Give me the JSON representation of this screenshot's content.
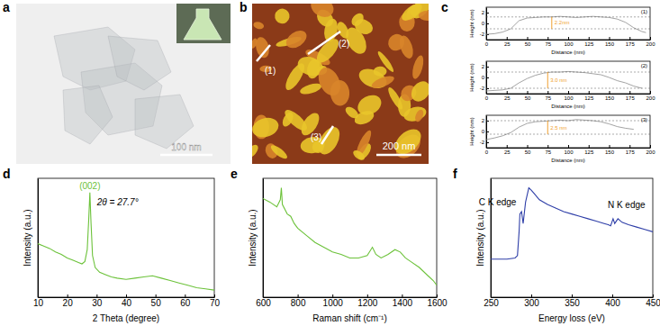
{
  "panels": [
    {
      "label": "a",
      "scale_bar": "100 nm"
    },
    {
      "label": "b",
      "scale_bar": "200 nm",
      "lines": [
        "(1)",
        "(2)",
        "(3)"
      ]
    }
  ],
  "chart_data": [
    {
      "type": "line",
      "panel": "c",
      "label": "(1)",
      "x_label": "Distance (nm)",
      "y_label": "Height (nm)",
      "color": "#8c8c8c",
      "xlim": [
        0,
        200
      ],
      "xticks": [
        0,
        25,
        50,
        75,
        100,
        125,
        150,
        175,
        200
      ],
      "ylim": [
        -3,
        3
      ],
      "yticks": [
        -2,
        0,
        2
      ],
      "x": [
        0,
        10,
        20,
        30,
        40,
        50,
        60,
        70,
        80,
        90,
        100,
        110,
        120,
        130,
        140,
        150,
        160,
        170,
        180,
        190,
        195
      ],
      "values": [
        -2.0,
        -1.9,
        -1.6,
        -1.0,
        0.5,
        1.0,
        1.1,
        1.2,
        1.2,
        1.3,
        1.2,
        1.1,
        1.2,
        1.3,
        1.2,
        1.1,
        0.8,
        0.2,
        -0.8,
        -1.5,
        -1.7
      ],
      "step": {
        "text": "2.2nm",
        "x": 80,
        "y1": -1.0,
        "y2": 1.2
      }
    },
    {
      "type": "line",
      "label": "(2)",
      "x_label": "Distance (nm)",
      "y_label": "Height (nm)",
      "color": "#8c8c8c",
      "xlim": [
        0,
        200
      ],
      "xticks": [
        0,
        25,
        50,
        75,
        100,
        125,
        150,
        175,
        200
      ],
      "ylim": [
        -3,
        3
      ],
      "yticks": [
        -2,
        0,
        2
      ],
      "x": [
        0,
        10,
        20,
        30,
        40,
        50,
        60,
        70,
        80,
        90,
        100,
        110,
        120,
        130,
        140,
        150,
        160,
        170,
        180,
        190
      ],
      "values": [
        -2.5,
        -2.4,
        -2.3,
        -2.0,
        -1.0,
        -0.2,
        0.4,
        0.8,
        1.0,
        1.0,
        1.1,
        1.0,
        0.9,
        0.7,
        0.5,
        0.0,
        -0.6,
        -1.0,
        -1.6,
        -2.0
      ],
      "step": {
        "text": "3.0 nm",
        "x": 75,
        "y1": -2.0,
        "y2": 1.0
      }
    },
    {
      "type": "line",
      "label": "(3)",
      "x_label": "Distance (nm)",
      "y_label": "Height (nm)",
      "color": "#8c8c8c",
      "xlim": [
        0,
        200
      ],
      "xticks": [
        0,
        25,
        50,
        75,
        100,
        125,
        150,
        175,
        200
      ],
      "ylim": [
        -3,
        3
      ],
      "yticks": [
        -2,
        0,
        2
      ],
      "x": [
        0,
        10,
        20,
        30,
        40,
        50,
        60,
        70,
        80,
        90,
        100,
        110,
        120,
        130,
        140,
        150,
        160,
        170,
        180
      ],
      "values": [
        -1.5,
        -1.2,
        -0.8,
        -0.2,
        0.8,
        1.5,
        1.8,
        1.9,
        2.0,
        2.1,
        2.0,
        2.2,
        2.1,
        2.0,
        1.8,
        1.4,
        0.9,
        0.6,
        0.4
      ],
      "step": {
        "text": "2.5 nm",
        "x": 75,
        "y1": -0.5,
        "y2": 2.0
      }
    },
    {
      "type": "line",
      "panel": "d",
      "x_label": "2 Theta (degree)",
      "y_label": "Intensity (a.u.)",
      "color": "#6cc23a",
      "xlim": [
        10,
        70
      ],
      "xticks": [
        10,
        20,
        30,
        40,
        50,
        60,
        70
      ],
      "ylim": [
        0,
        1
      ],
      "tick_labels": "x",
      "x": [
        10,
        12,
        14,
        16,
        18,
        20,
        22,
        24,
        25,
        26,
        26.8,
        27.3,
        27.7,
        28.1,
        28.6,
        29.5,
        31,
        33,
        35,
        37,
        40,
        43,
        46,
        49,
        52,
        55,
        58,
        61,
        64,
        67,
        70
      ],
      "values": [
        0.45,
        0.43,
        0.41,
        0.38,
        0.36,
        0.33,
        0.31,
        0.29,
        0.28,
        0.3,
        0.4,
        0.65,
        0.88,
        0.62,
        0.35,
        0.25,
        0.21,
        0.19,
        0.17,
        0.16,
        0.15,
        0.16,
        0.17,
        0.18,
        0.16,
        0.14,
        0.12,
        0.1,
        0.08,
        0.07,
        0.06
      ],
      "annotations": [
        {
          "text": "(002)",
          "x": 27.7
        },
        {
          "text": "2θ = 27.7°",
          "x": 27.7
        }
      ]
    },
    {
      "type": "line",
      "panel": "e",
      "x_label": "Raman shift (cm⁻¹)",
      "y_label": "Intensity (a.u.)",
      "color": "#6cc23a",
      "xlim": [
        600,
        1600
      ],
      "xticks": [
        600,
        800,
        1000,
        1200,
        1400,
        1600
      ],
      "ylim": [
        0,
        1
      ],
      "tick_labels": "x",
      "x": [
        600,
        640,
        680,
        700,
        706,
        712,
        740,
        760,
        780,
        800,
        850,
        900,
        950,
        1000,
        1050,
        1100,
        1150,
        1200,
        1230,
        1250,
        1280,
        1320,
        1360,
        1390,
        1420,
        1450,
        1500,
        1550,
        1580,
        1600
      ],
      "values": [
        0.83,
        0.8,
        0.76,
        0.82,
        0.92,
        0.78,
        0.7,
        0.68,
        0.62,
        0.58,
        0.52,
        0.46,
        0.42,
        0.38,
        0.36,
        0.33,
        0.33,
        0.35,
        0.42,
        0.36,
        0.33,
        0.36,
        0.4,
        0.38,
        0.33,
        0.3,
        0.25,
        0.18,
        0.14,
        0.1
      ]
    },
    {
      "type": "line",
      "panel": "f",
      "x_label": "Energy loss (eV)",
      "y_label": "Intensity (a.u.)",
      "color": "#2f3fa8",
      "xlim": [
        250,
        450
      ],
      "xticks": [
        250,
        300,
        350,
        400,
        450
      ],
      "ylim": [
        0,
        1
      ],
      "tick_labels": "x",
      "x": [
        250,
        260,
        270,
        280,
        283,
        285,
        286,
        288,
        290,
        293,
        297,
        300,
        305,
        310,
        320,
        330,
        340,
        350,
        360,
        370,
        380,
        390,
        395,
        398,
        401,
        403,
        407,
        412,
        420,
        430,
        440,
        450
      ],
      "values": [
        0.32,
        0.32,
        0.32,
        0.33,
        0.35,
        0.55,
        0.7,
        0.72,
        0.62,
        0.8,
        0.92,
        0.9,
        0.86,
        0.82,
        0.78,
        0.75,
        0.72,
        0.7,
        0.68,
        0.66,
        0.64,
        0.62,
        0.61,
        0.6,
        0.66,
        0.62,
        0.66,
        0.63,
        0.61,
        0.59,
        0.57,
        0.55
      ],
      "annotations": [
        {
          "text": "C K edge",
          "x": 286
        },
        {
          "text": "N K edge",
          "x": 401
        }
      ]
    }
  ]
}
